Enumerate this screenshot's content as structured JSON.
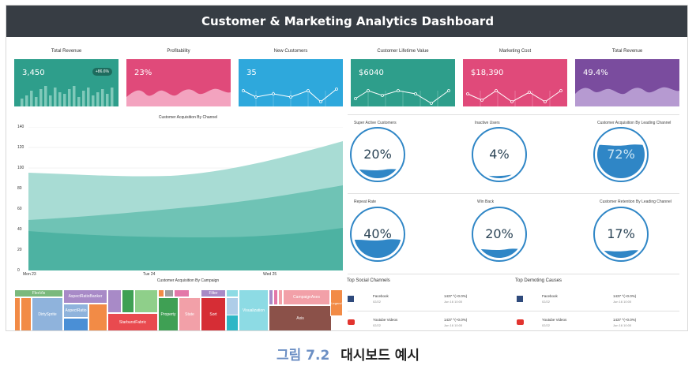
{
  "header": {
    "title": "Customer & Marketing Analytics Dashboard"
  },
  "kpis": [
    {
      "label": "Total Revenue",
      "value": "3,450",
      "badge": "+86.6%",
      "color": "#2e9e8b",
      "chart": "bars"
    },
    {
      "label": "Profitability",
      "value": "23%",
      "color": "#e04a7a",
      "chart": "wave"
    },
    {
      "label": "New Customers",
      "value": "35",
      "color": "#2ea8dc",
      "chart": "line"
    },
    {
      "label": "Customer Lifetime Value",
      "value": "$6040",
      "color": "#2e9e8b",
      "chart": "line"
    },
    {
      "label": "Marketing Cost",
      "value": "$18,390",
      "color": "#e04a7a",
      "chart": "line"
    },
    {
      "label": "Total Revenue",
      "value": "49.4%",
      "color": "#7a4c9e",
      "chart": "wave"
    }
  ],
  "area_chart": {
    "title": "Customer Acquisition By Channel",
    "y_ticks": [
      "140",
      "120",
      "100",
      "80",
      "60",
      "40",
      "20",
      "0"
    ],
    "x_ticks": [
      "Mon 23",
      "Tue 24",
      "Wed 25"
    ]
  },
  "gauges": [
    {
      "title": "Super Active Customers",
      "value": "20%",
      "fill": 0.2
    },
    {
      "title": "Inactive Users",
      "value": "4%",
      "fill": 0.04
    },
    {
      "title": "Customer Acquisition By Leading Channel",
      "value": "72%",
      "fill": 0.72
    },
    {
      "title": "Repeat Rate",
      "value": "40%",
      "fill": 0.4
    },
    {
      "title": "Win Back",
      "value": "20%",
      "fill": 0.2
    },
    {
      "title": "Customer Retention By Leading Channel",
      "value": "17%",
      "fill": 0.17
    }
  ],
  "treemap": {
    "title": "Customer Acquisition By Campaign",
    "labels": [
      "FlexVis",
      "DirtySprite",
      "AspectRatioBanker",
      "AspectRatio",
      "StarburstFabric",
      "Property",
      "State",
      "Filter",
      "Sort",
      "Visualization",
      "CampaignAxes",
      "Axis",
      "Legend"
    ]
  },
  "social": {
    "title": "Top Social Channels",
    "rows": [
      {
        "name": "Facebook",
        "sub": "02/22",
        "count": "1437 ^(+0.0%)",
        "date": "Jun 16 10:00",
        "icon": "facebook-icon"
      },
      {
        "name": "Youtube Videos",
        "sub": "02/22",
        "count": "1437 ^(+0.0%)",
        "date": "Jun 16 10:00",
        "icon": "youtube-icon"
      }
    ]
  },
  "demoting": {
    "title": "Top Demoting Causes",
    "rows": [
      {
        "name": "Facebook",
        "sub": "02/22",
        "count": "1437 ^(+0.0%)",
        "date": "Jun 16 10:00",
        "icon": "facebook-icon"
      },
      {
        "name": "Youtube Videos",
        "sub": "02/22",
        "count": "1437 ^(+0.0%)",
        "date": "Jun 16 10:00",
        "icon": "youtube-icon"
      }
    ]
  },
  "caption": {
    "figure": "그림 7.2",
    "text": "대시보드 예시"
  }
}
